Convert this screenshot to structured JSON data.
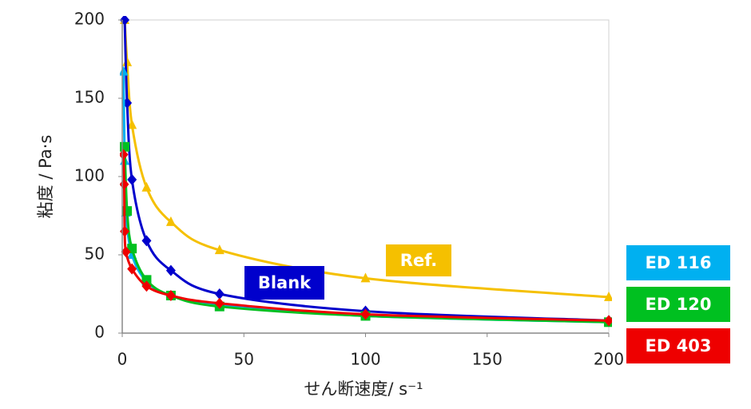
{
  "chart_data": {
    "type": "line",
    "xlabel": "せん断速度/ s⁻¹",
    "ylabel": "粘度 / Pa·s",
    "xlim": [
      0,
      200
    ],
    "xticks": [
      0,
      50,
      100,
      150,
      200
    ],
    "ylim": [
      0,
      200
    ],
    "yticks": [
      0,
      50,
      100,
      150,
      200
    ],
    "series": [
      {
        "name": "Ref.",
        "color": "#f5c000",
        "marker": "triangle",
        "x": [
          1,
          2,
          4,
          10,
          20,
          40,
          100,
          200
        ],
        "values": [
          200,
          173,
          133,
          93,
          71,
          53,
          35,
          23
        ]
      },
      {
        "name": "Blank",
        "color": "#0000cc",
        "marker": "diamond",
        "x": [
          1,
          2,
          4,
          10,
          20,
          40,
          100,
          200
        ],
        "values": [
          200,
          147,
          98,
          59,
          40,
          25,
          14,
          8
        ]
      },
      {
        "name": "ED 116",
        "color": "#00b0f0",
        "marker": "triangle",
        "x": [
          0.5,
          1,
          1.5,
          4,
          10,
          20,
          40,
          100,
          200
        ],
        "values": [
          167,
          110,
          77,
          50,
          33,
          24,
          18,
          11,
          7
        ]
      },
      {
        "name": "ED 120",
        "color": "#00c020",
        "marker": "square",
        "x": [
          1,
          2,
          4,
          10,
          20,
          40,
          100,
          200
        ],
        "values": [
          119,
          78,
          54,
          34,
          24,
          17,
          11,
          7
        ]
      },
      {
        "name": "ED 403",
        "color": "#ee0000",
        "marker": "diamond",
        "x": [
          0.5,
          0.8,
          1,
          1.5,
          4,
          10,
          20,
          40,
          100,
          200
        ],
        "values": [
          114,
          95,
          65,
          52,
          41,
          30,
          24,
          19,
          12,
          8
        ]
      }
    ]
  }
}
